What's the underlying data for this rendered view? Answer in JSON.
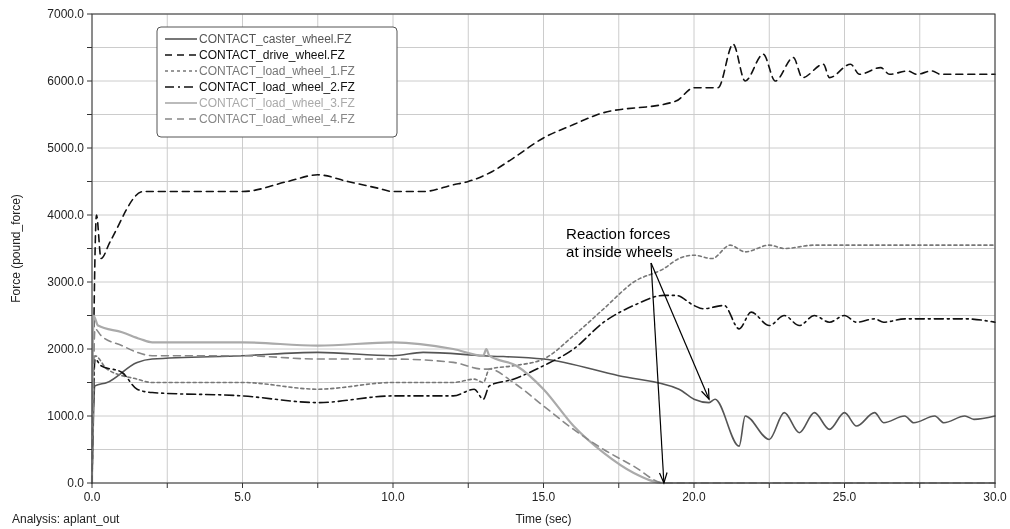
{
  "chart_data": {
    "type": "line",
    "xlabel": "Time (sec)",
    "ylabel": "Force (pound_force)",
    "xlim": [
      0,
      30
    ],
    "ylim": [
      0,
      7000
    ],
    "xticks": [
      {
        "value": 0,
        "label": "0.0"
      },
      {
        "value": 2.5,
        "label": null
      },
      {
        "value": 5,
        "label": "5.0"
      },
      {
        "value": 7.5,
        "label": null
      },
      {
        "value": 10,
        "label": "10.0"
      },
      {
        "value": 12.5,
        "label": null
      },
      {
        "value": 15,
        "label": "15.0"
      },
      {
        "value": 17.5,
        "label": null
      },
      {
        "value": 20,
        "label": "20.0"
      },
      {
        "value": 22.5,
        "label": null
      },
      {
        "value": 25,
        "label": "25.0"
      },
      {
        "value": 27.5,
        "label": null
      },
      {
        "value": 30,
        "label": "30.0"
      }
    ],
    "yticks": [
      {
        "value": 0,
        "label": "0.0"
      },
      {
        "value": 500,
        "label": null
      },
      {
        "value": 1000,
        "label": "1000.0"
      },
      {
        "value": 1500,
        "label": null
      },
      {
        "value": 2000,
        "label": "2000.0"
      },
      {
        "value": 2500,
        "label": null
      },
      {
        "value": 3000,
        "label": "3000.0"
      },
      {
        "value": 3500,
        "label": null
      },
      {
        "value": 4000,
        "label": "4000.0"
      },
      {
        "value": 4500,
        "label": null
      },
      {
        "value": 5000,
        "label": "5000.0"
      },
      {
        "value": 5500,
        "label": null
      },
      {
        "value": 6000,
        "label": "6000.0"
      },
      {
        "value": 6500,
        "label": null
      },
      {
        "value": 7000,
        "label": "7000.0"
      }
    ],
    "grid": true,
    "legend": "top left",
    "marker": "none",
    "series": [
      {
        "name": "CONTACT_caster_wheel.FZ",
        "color": "#555555",
        "line_style": "solid",
        "x": [
          0,
          0.1,
          0.5,
          1.5,
          2,
          5,
          7.5,
          10,
          11,
          13,
          15,
          17.5,
          19.5,
          20,
          20.5,
          20.7,
          21.5,
          21.7,
          22.5,
          23,
          23.5,
          24,
          24.5,
          25,
          25.4,
          26,
          26.3,
          27,
          27.3,
          28,
          28.3,
          29,
          29.3,
          30
        ],
        "values": [
          0,
          1450,
          1500,
          1800,
          1850,
          1900,
          1950,
          1900,
          1950,
          1900,
          1850,
          1600,
          1400,
          1250,
          1200,
          1250,
          550,
          1000,
          650,
          1050,
          750,
          1050,
          800,
          1050,
          850,
          1050,
          900,
          1000,
          900,
          1000,
          900,
          1000,
          950,
          1000
        ]
      },
      {
        "name": "CONTACT_drive_wheel.FZ",
        "color": "#111111",
        "line_style": "dashed",
        "x": [
          0,
          0.15,
          0.3,
          0.6,
          1.7,
          5,
          6.5,
          7.5,
          8.5,
          9.5,
          10,
          11,
          12,
          12.5,
          13.3,
          14,
          15,
          16,
          16.8,
          19.4,
          20,
          20.8,
          21.3,
          21.7,
          22.3,
          22.7,
          23.3,
          23.6,
          24.3,
          24.5,
          25.2,
          25.5,
          26.2,
          26.5,
          27.1,
          27.4,
          27.9,
          28.2,
          29.7,
          30
        ],
        "values": [
          0,
          4000,
          3350,
          3600,
          4350,
          4350,
          4500,
          4600,
          4500,
          4400,
          4350,
          4350,
          4450,
          4500,
          4650,
          4850,
          5150,
          5350,
          5500,
          5700,
          5900,
          5900,
          6550,
          6000,
          6400,
          6000,
          6350,
          6050,
          6250,
          6050,
          6250,
          6100,
          6200,
          6100,
          6150,
          6100,
          6150,
          6100,
          6100,
          6100
        ]
      },
      {
        "name": "CONTACT_load_wheel_1.FZ",
        "color": "#777777",
        "line_style": "dotted",
        "x": [
          0,
          0.1,
          0.5,
          1.5,
          2,
          5,
          7.5,
          10,
          12,
          12.7,
          13,
          13.2,
          14,
          15,
          16,
          17,
          18,
          19,
          19.5,
          20,
          20.6,
          21.2,
          21.7,
          22.5,
          23,
          24,
          25,
          26,
          28,
          30
        ],
        "values": [
          0,
          1900,
          1700,
          1550,
          1500,
          1500,
          1400,
          1500,
          1500,
          1550,
          1500,
          1700,
          1750,
          1850,
          2200,
          2600,
          3000,
          3200,
          3350,
          3400,
          3350,
          3550,
          3450,
          3550,
          3500,
          3550,
          3550,
          3550,
          3550,
          3550
        ]
      },
      {
        "name": "CONTACT_load_wheel_2.FZ",
        "color": "#111111",
        "line_style": "dashdot",
        "x": [
          0,
          0.1,
          0.3,
          1,
          1.5,
          2,
          5,
          7.5,
          10,
          12,
          12.7,
          13,
          13.2,
          14,
          15,
          16,
          17,
          18,
          19,
          19.4,
          20,
          20.3,
          21,
          21.5,
          21.9,
          22.5,
          23,
          23.5,
          24,
          24.5,
          25,
          25.4,
          26,
          26.3,
          27,
          28,
          29,
          30
        ],
        "values": [
          0,
          1850,
          1750,
          1650,
          1400,
          1350,
          1300,
          1200,
          1300,
          1300,
          1400,
          1250,
          1450,
          1550,
          1750,
          2000,
          2400,
          2650,
          2800,
          2800,
          2650,
          2600,
          2650,
          2300,
          2550,
          2350,
          2500,
          2350,
          2500,
          2400,
          2500,
          2400,
          2450,
          2400,
          2450,
          2450,
          2450,
          2400
        ]
      },
      {
        "name": "CONTACT_load_wheel_3.FZ",
        "color": "#aaaaaa",
        "line_style": "solid",
        "x": [
          0,
          0.05,
          0.2,
          1,
          1.6,
          2,
          5,
          7.5,
          10,
          12,
          13,
          13.1,
          13.2,
          14.1,
          15,
          16,
          17,
          18,
          19,
          19.3,
          30
        ],
        "values": [
          0,
          2500,
          2350,
          2250,
          2150,
          2100,
          2100,
          2050,
          2100,
          2000,
          1900,
          2000,
          1900,
          1750,
          1400,
          850,
          450,
          150,
          0,
          0,
          0
        ]
      },
      {
        "name": "CONTACT_load_wheel_4.FZ",
        "color": "#888888",
        "line_style": "dashed",
        "x": [
          0,
          0.1,
          0.3,
          1,
          1.5,
          2,
          5,
          7.5,
          10,
          12,
          13,
          13.2,
          14,
          15,
          16,
          17,
          18,
          19,
          19.2,
          30
        ],
        "values": [
          0,
          2300,
          2200,
          2050,
          1950,
          1900,
          1900,
          1850,
          1850,
          1800,
          1700,
          1700,
          1500,
          1150,
          800,
          500,
          250,
          0,
          0,
          0
        ]
      }
    ],
    "annotations": [
      {
        "text": "Reaction forces\nat inside wheels",
        "x": 20.5,
        "y": 1250
      },
      "Analysis:  aplant_out"
    ]
  }
}
